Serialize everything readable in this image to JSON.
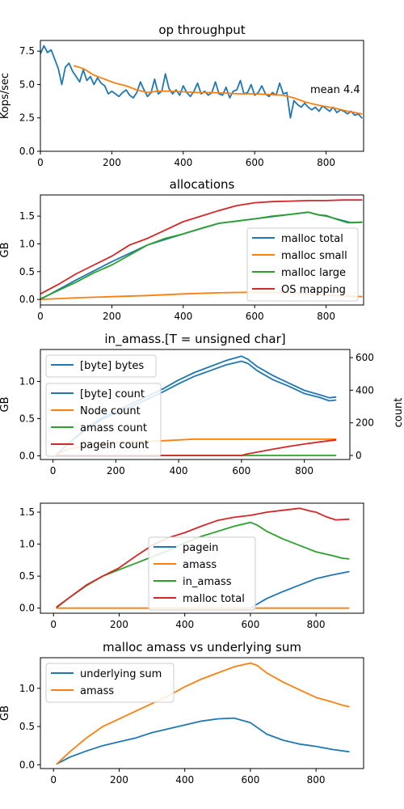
{
  "chart_data": [
    {
      "type": "line",
      "title": "op throughput",
      "xlabel": "",
      "ylabel": "Kops/sec",
      "xlim": [
        0,
        905
      ],
      "ylim": [
        0,
        8.3
      ],
      "xticks": [
        0,
        200,
        400,
        600,
        800
      ],
      "yticks": [
        0.0,
        2.5,
        5.0,
        7.5
      ],
      "ytick_labels": [
        "0.0",
        "2.5",
        "5.0",
        "7.5"
      ],
      "grid": false,
      "annotation": "mean 4.4",
      "series": [
        {
          "color": "#1f77b4",
          "x": [
            0,
            10,
            20,
            30,
            40,
            50,
            60,
            70,
            80,
            90,
            100,
            110,
            120,
            130,
            140,
            150,
            160,
            170,
            180,
            190,
            200,
            210,
            220,
            230,
            240,
            250,
            260,
            270,
            280,
            290,
            300,
            310,
            320,
            330,
            340,
            350,
            360,
            370,
            380,
            390,
            400,
            410,
            420,
            430,
            440,
            450,
            460,
            470,
            480,
            490,
            500,
            510,
            520,
            530,
            540,
            550,
            560,
            570,
            580,
            590,
            600,
            610,
            620,
            630,
            640,
            650,
            660,
            670,
            680,
            690,
            700,
            710,
            720,
            730,
            740,
            750,
            760,
            770,
            780,
            790,
            800,
            810,
            820,
            830,
            840,
            850,
            860,
            870,
            880,
            890,
            900
          ],
          "y": [
            7.3,
            7.9,
            7.4,
            7.6,
            6.9,
            6.2,
            5.0,
            6.3,
            6.6,
            6.0,
            5.6,
            5.2,
            6.1,
            5.3,
            5.6,
            5.0,
            5.5,
            5.1,
            4.9,
            4.3,
            4.5,
            4.3,
            4.1,
            4.4,
            4.6,
            4.2,
            4.0,
            4.4,
            5.2,
            4.6,
            4.1,
            4.4,
            5.4,
            4.3,
            4.5,
            5.8,
            4.7,
            4.3,
            4.6,
            4.2,
            4.9,
            4.4,
            4.1,
            4.5,
            5.1,
            4.3,
            4.5,
            4.2,
            4.4,
            5.2,
            4.3,
            4.2,
            4.8,
            4.0,
            4.5,
            4.6,
            5.3,
            4.3,
            4.4,
            5.0,
            4.2,
            4.4,
            4.9,
            4.3,
            4.1,
            4.4,
            4.2,
            5.1,
            4.3,
            4.4,
            2.5,
            3.8,
            3.5,
            3.3,
            3.6,
            3.3,
            3.1,
            3.3,
            3.0,
            3.4,
            3.2,
            3.0,
            3.3,
            2.9,
            3.1,
            3.0,
            2.8,
            3.0,
            2.7,
            2.8,
            2.5
          ]
        },
        {
          "color": "#ff7f0e",
          "x": [
            95,
            120,
            150,
            180,
            210,
            240,
            270,
            300,
            330,
            360,
            400,
            440,
            480,
            520,
            560,
            600,
            640,
            680,
            710,
            740,
            770,
            800,
            830,
            860,
            900
          ],
          "y": [
            6.4,
            6.2,
            5.7,
            5.4,
            5.1,
            4.9,
            4.6,
            4.4,
            4.5,
            4.5,
            4.45,
            4.4,
            4.4,
            4.35,
            4.3,
            4.3,
            4.25,
            4.2,
            4.0,
            3.7,
            3.5,
            3.35,
            3.2,
            3.0,
            2.8
          ]
        }
      ]
    },
    {
      "type": "line",
      "title": "allocations",
      "xlabel": "",
      "ylabel": "GB",
      "xlim": [
        0,
        905
      ],
      "ylim": [
        -0.1,
        1.88
      ],
      "xticks": [
        0,
        200,
        400,
        600,
        800
      ],
      "yticks": [
        0.0,
        0.5,
        1.0,
        1.5
      ],
      "ytick_labels": [
        "0.0",
        "0.5",
        "1.0",
        "1.5"
      ],
      "legend_position": "lower-right",
      "series": [
        {
          "name": "malloc total",
          "color": "#1f77b4",
          "x": [
            0,
            100,
            200,
            300,
            400,
            500,
            600,
            700,
            750,
            780,
            800,
            840,
            870,
            900
          ],
          "y": [
            0.0,
            0.35,
            0.68,
            0.98,
            1.18,
            1.37,
            1.45,
            1.53,
            1.57,
            1.52,
            1.5,
            1.43,
            1.38,
            1.39
          ]
        },
        {
          "name": "malloc small",
          "color": "#ff7f0e",
          "x": [
            0,
            100,
            200,
            300,
            400,
            500,
            600,
            700,
            800,
            900
          ],
          "y": [
            0.0,
            0.03,
            0.05,
            0.07,
            0.1,
            0.12,
            0.13,
            0.12,
            0.08,
            0.05
          ]
        },
        {
          "name": "malloc large",
          "color": "#2ca02c",
          "x": [
            0,
            50,
            100,
            150,
            200,
            250,
            300,
            350,
            400,
            450,
            500,
            550,
            600,
            650,
            700,
            750,
            780,
            800,
            830,
            860,
            900
          ],
          "y": [
            0.01,
            0.16,
            0.31,
            0.48,
            0.62,
            0.8,
            0.98,
            1.1,
            1.18,
            1.28,
            1.37,
            1.41,
            1.45,
            1.5,
            1.53,
            1.57,
            1.52,
            1.51,
            1.44,
            1.38,
            1.39
          ]
        },
        {
          "name": "OS mapping",
          "color": "#d62728",
          "x": [
            0,
            50,
            100,
            150,
            200,
            250,
            300,
            350,
            400,
            450,
            500,
            550,
            600,
            650,
            700,
            750,
            800,
            850,
            900
          ],
          "y": [
            0.1,
            0.27,
            0.46,
            0.62,
            0.78,
            0.98,
            1.1,
            1.25,
            1.4,
            1.5,
            1.6,
            1.69,
            1.74,
            1.76,
            1.77,
            1.78,
            1.78,
            1.79,
            1.79
          ]
        }
      ]
    },
    {
      "type": "line",
      "title": "in_amass.[T = unsigned char]",
      "xlabel": "",
      "ylabel": "GB",
      "ylabel_right": "count",
      "xlim": [
        -40,
        945
      ],
      "ylim": [
        -0.05,
        1.43
      ],
      "ylim_right": [
        -25,
        650
      ],
      "xticks": [
        0,
        200,
        400,
        600,
        800
      ],
      "yticks": [
        0.0,
        0.5,
        1.0
      ],
      "ytick_labels": [
        "0.0",
        "0.5",
        "1.0"
      ],
      "yticks_right": [
        0,
        200,
        400,
        600
      ],
      "legend_position": "upper-left",
      "series": [
        {
          "name": "[byte] bytes",
          "axis": "left",
          "color": "#1f77b4",
          "x": [
            10,
            50,
            100,
            150,
            200,
            250,
            300,
            350,
            400,
            450,
            500,
            550,
            600,
            620,
            650,
            700,
            750,
            800,
            850,
            880,
            900
          ],
          "y": [
            0.01,
            0.17,
            0.35,
            0.5,
            0.6,
            0.7,
            0.8,
            0.9,
            1.02,
            1.12,
            1.2,
            1.28,
            1.34,
            1.3,
            1.2,
            1.08,
            0.98,
            0.88,
            0.82,
            0.78,
            0.79
          ]
        },
        {
          "name": "[byte] count",
          "axis": "right",
          "color": "#1f77b4",
          "x": [
            10,
            50,
            100,
            150,
            200,
            250,
            300,
            350,
            400,
            450,
            500,
            550,
            600,
            620,
            650,
            700,
            750,
            800,
            850,
            880,
            900
          ],
          "y": [
            5,
            75,
            150,
            215,
            260,
            300,
            345,
            390,
            440,
            485,
            520,
            555,
            578,
            565,
            520,
            465,
            425,
            380,
            355,
            335,
            340
          ]
        },
        {
          "name": "Node count",
          "axis": "right",
          "color": "#ff7f0e",
          "x": [
            10,
            50,
            100,
            200,
            300,
            400,
            450,
            500,
            600,
            700,
            800,
            900
          ],
          "y": [
            5,
            40,
            60,
            80,
            85,
            95,
            100,
            100,
            100,
            100,
            100,
            100
          ]
        },
        {
          "name": "amass count",
          "axis": "right",
          "color": "#2ca02c",
          "x": [
            10,
            900
          ],
          "y": [
            0,
            0
          ]
        },
        {
          "name": "pagein count",
          "axis": "right",
          "color": "#d62728",
          "x": [
            10,
            600,
            615,
            650,
            700,
            750,
            800,
            850,
            900
          ],
          "y": [
            0,
            0,
            8,
            20,
            38,
            55,
            70,
            83,
            95
          ]
        }
      ]
    },
    {
      "type": "line",
      "title": "",
      "xlabel": "",
      "ylabel": "",
      "xlim": [
        -40,
        945
      ],
      "ylim": [
        -0.08,
        1.64
      ],
      "xticks": [
        0,
        200,
        400,
        600,
        800
      ],
      "yticks": [
        0.0,
        0.5,
        1.0,
        1.5
      ],
      "ytick_labels": [
        "0.0",
        "0.5",
        "1.0",
        "1.5"
      ],
      "legend_position": "center",
      "series": [
        {
          "name": "pagein",
          "color": "#1f77b4",
          "x": [
            600,
            620,
            650,
            700,
            750,
            800,
            850,
            900
          ],
          "y": [
            0.0,
            0.06,
            0.15,
            0.26,
            0.36,
            0.46,
            0.52,
            0.57
          ]
        },
        {
          "name": "amass",
          "color": "#ff7f0e",
          "x": [
            10,
            900
          ],
          "y": [
            0.0,
            0.0
          ]
        },
        {
          "name": "in_amass",
          "color": "#2ca02c",
          "x": [
            10,
            50,
            100,
            150,
            200,
            250,
            300,
            350,
            400,
            450,
            500,
            550,
            600,
            620,
            650,
            700,
            750,
            800,
            850,
            880,
            900
          ],
          "y": [
            0.01,
            0.17,
            0.35,
            0.5,
            0.6,
            0.7,
            0.8,
            0.9,
            1.02,
            1.12,
            1.2,
            1.28,
            1.34,
            1.3,
            1.2,
            1.08,
            0.98,
            0.88,
            0.82,
            0.78,
            0.77
          ]
        },
        {
          "name": "malloc total",
          "color": "#d62728",
          "x": [
            10,
            50,
            100,
            150,
            200,
            250,
            300,
            350,
            400,
            450,
            500,
            550,
            600,
            650,
            700,
            750,
            780,
            800,
            830,
            860,
            900
          ],
          "y": [
            0.02,
            0.17,
            0.36,
            0.5,
            0.63,
            0.81,
            0.98,
            1.1,
            1.18,
            1.28,
            1.37,
            1.42,
            1.45,
            1.5,
            1.53,
            1.56,
            1.52,
            1.5,
            1.43,
            1.38,
            1.39
          ]
        }
      ]
    },
    {
      "type": "line",
      "title": "malloc amass vs underlying sum",
      "xlabel": "",
      "ylabel": "GB",
      "xlim": [
        -40,
        945
      ],
      "ylim": [
        -0.05,
        1.4
      ],
      "xticks": [
        0,
        200,
        400,
        600,
        800
      ],
      "yticks": [
        0.0,
        0.5,
        1.0
      ],
      "ytick_labels": [
        "0.0",
        "0.5",
        "1.0"
      ],
      "legend_position": "upper-left",
      "series": [
        {
          "name": "underlying sum",
          "color": "#1f77b4",
          "x": [
            10,
            50,
            100,
            150,
            200,
            250,
            300,
            350,
            400,
            450,
            500,
            550,
            600,
            650,
            700,
            750,
            800,
            850,
            900
          ],
          "y": [
            0.01,
            0.1,
            0.18,
            0.25,
            0.3,
            0.35,
            0.42,
            0.47,
            0.52,
            0.57,
            0.6,
            0.61,
            0.55,
            0.4,
            0.32,
            0.27,
            0.24,
            0.2,
            0.17
          ]
        },
        {
          "name": "amass",
          "color": "#ff7f0e",
          "x": [
            10,
            50,
            100,
            150,
            200,
            250,
            300,
            350,
            400,
            450,
            500,
            550,
            600,
            620,
            650,
            700,
            750,
            800,
            850,
            880,
            900
          ],
          "y": [
            0.01,
            0.17,
            0.35,
            0.5,
            0.6,
            0.7,
            0.8,
            0.9,
            1.02,
            1.12,
            1.2,
            1.28,
            1.33,
            1.3,
            1.2,
            1.08,
            0.98,
            0.88,
            0.82,
            0.78,
            0.76
          ]
        }
      ]
    }
  ]
}
